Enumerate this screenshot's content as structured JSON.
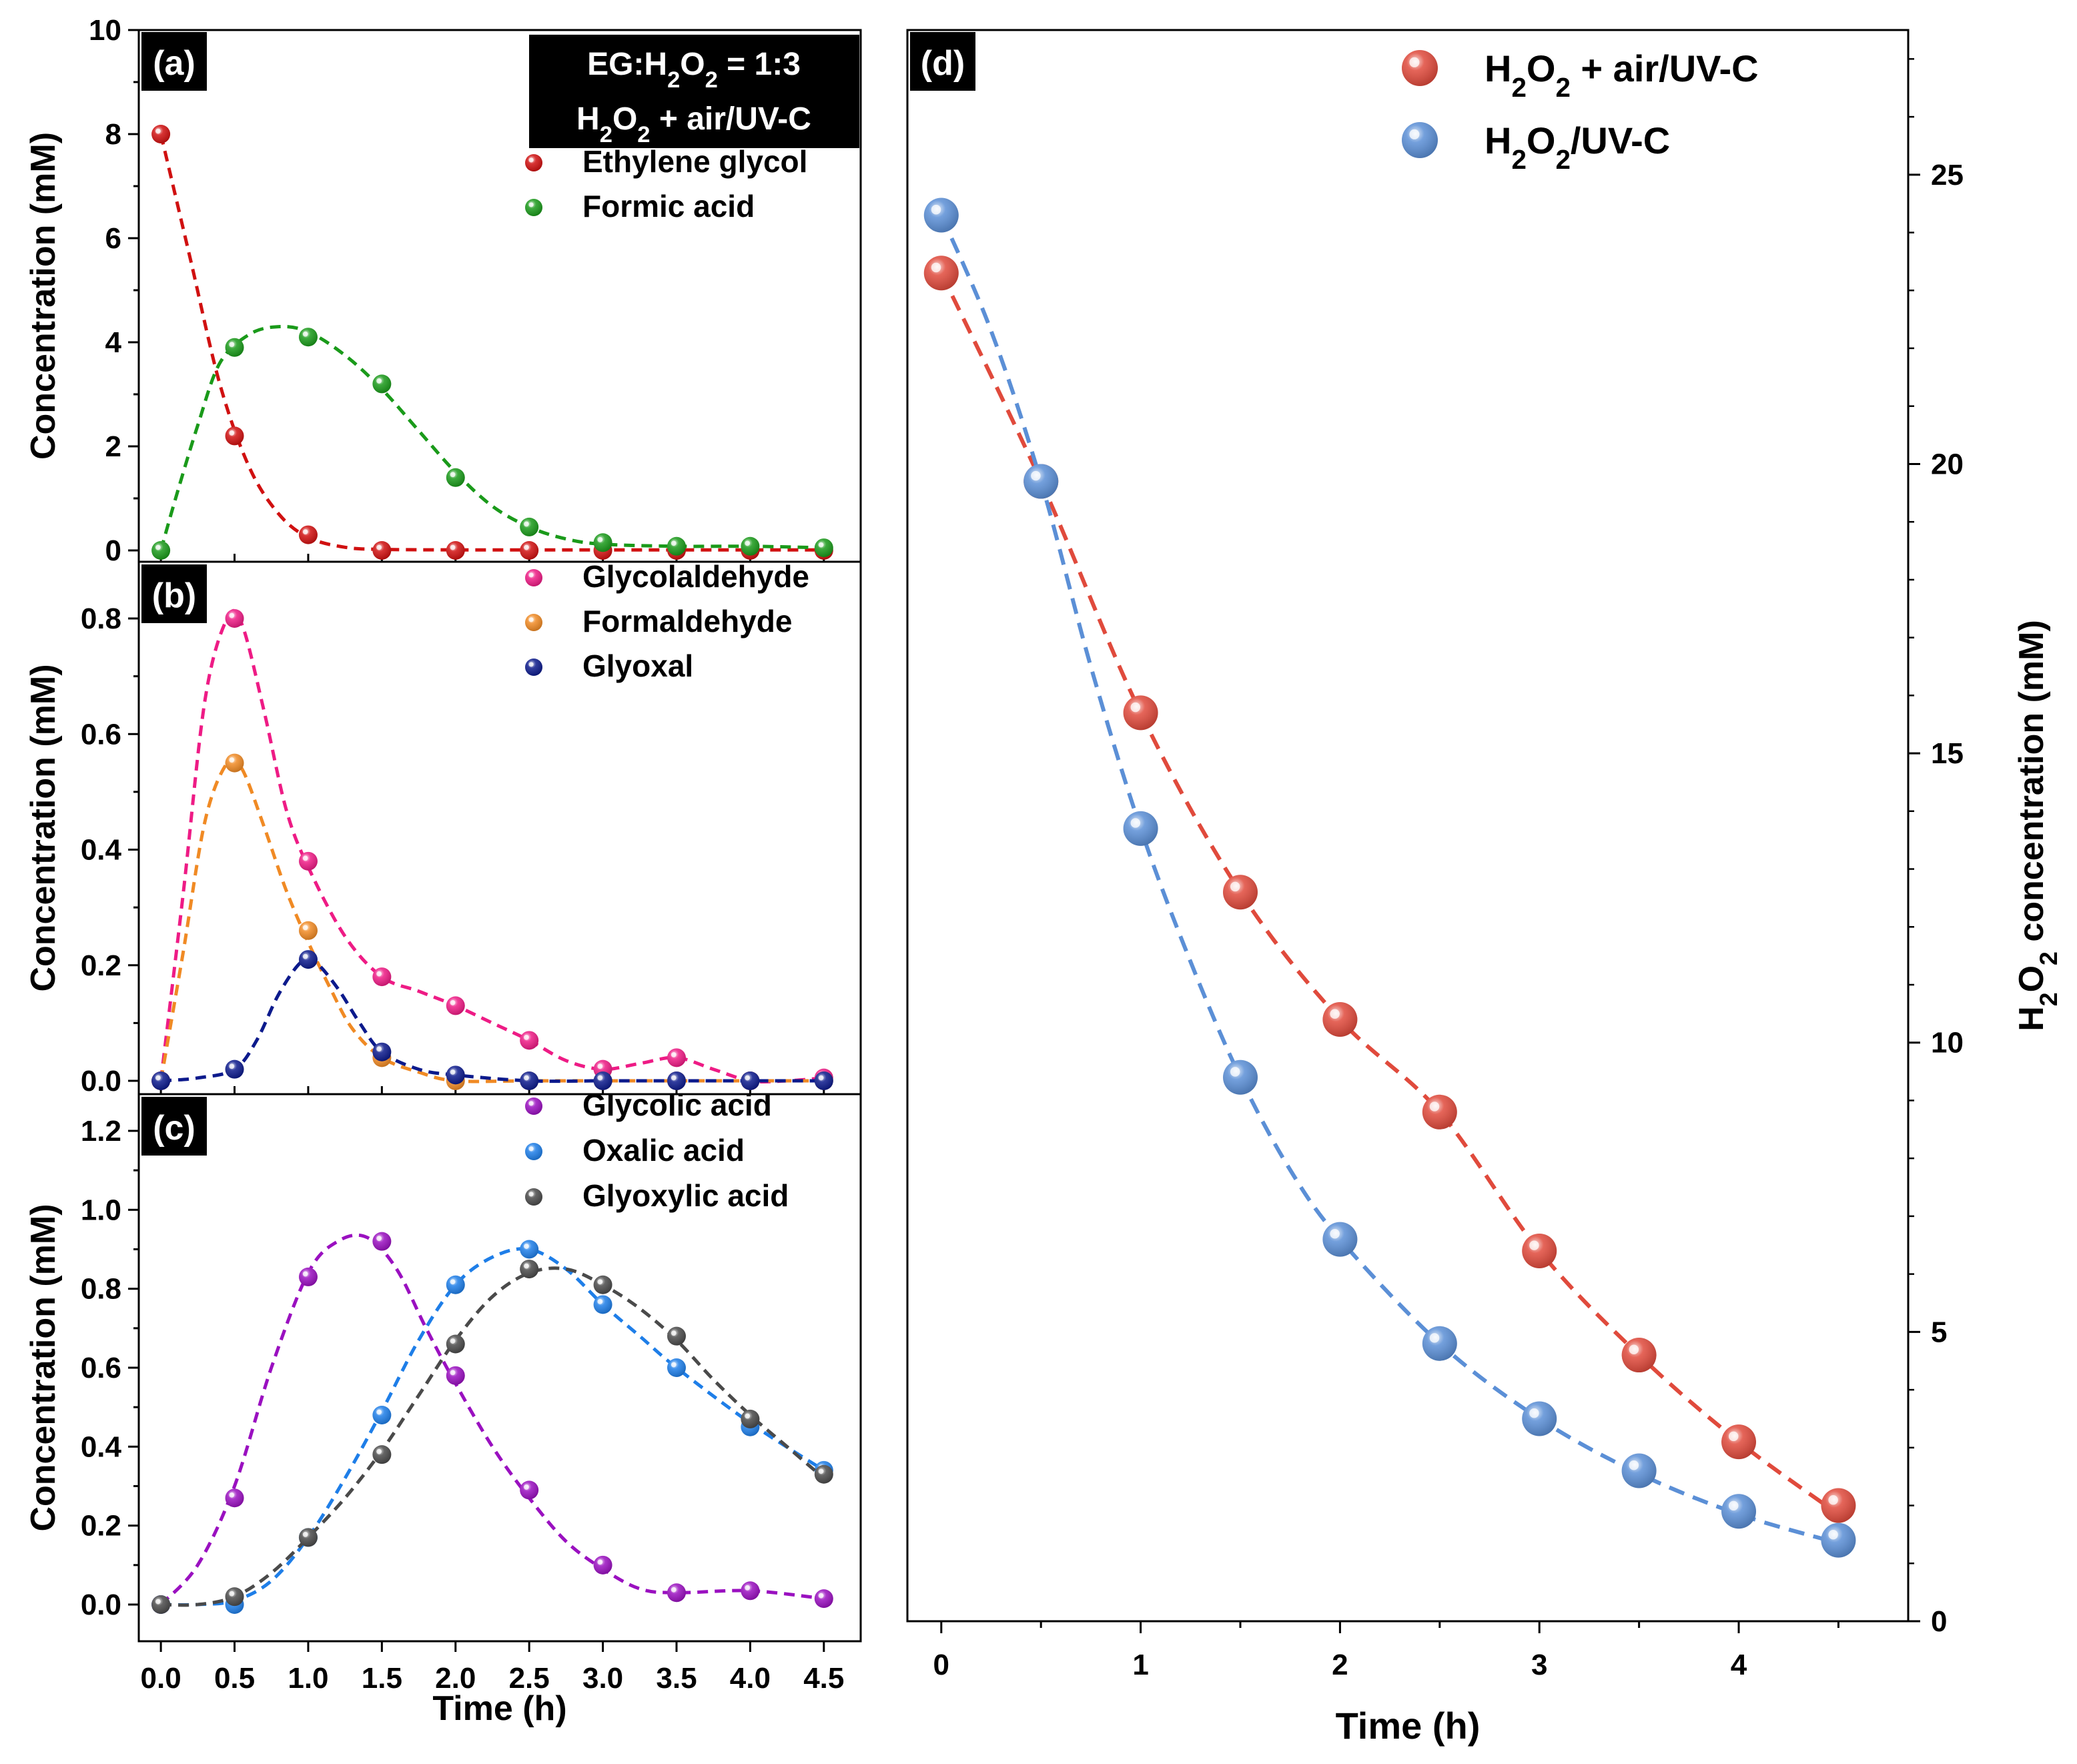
{
  "chart_data": [
    {
      "panel": "a",
      "type": "scatter",
      "label": "(a)",
      "info_box": [
        "EG:H2O2 = 1:3",
        "H2O2 + air/UV-C"
      ],
      "ylabel": "Concentration (mM)",
      "ylim": [
        0,
        10
      ],
      "yticks": [
        0,
        2,
        4,
        6,
        8,
        10
      ],
      "x": [
        0,
        0.5,
        1,
        1.5,
        2,
        2.5,
        3,
        3.5,
        4,
        4.5
      ],
      "series": [
        {
          "name": "Ethylene glycol",
          "color": "#d01010",
          "values": [
            8.0,
            2.2,
            0.3,
            0.0,
            0.0,
            0.0,
            0.0,
            0.0,
            0.0,
            0.0
          ],
          "curve_x": [
            0,
            0.2,
            0.4,
            0.6,
            0.8,
            1.0,
            1.25,
            1.5,
            2,
            2.5,
            3,
            3.5,
            4,
            4.5
          ],
          "curve_y": [
            8.0,
            5.6,
            3.2,
            1.6,
            0.7,
            0.25,
            0.06,
            0.02,
            0.01,
            0.01,
            0.01,
            0.01,
            0.01,
            0.01
          ]
        },
        {
          "name": "Formic acid",
          "color": "#1a9a1a",
          "values": [
            0.0,
            3.9,
            4.1,
            3.2,
            1.4,
            0.45,
            0.15,
            0.08,
            0.08,
            0.05
          ],
          "curve_x": [
            0,
            0.1,
            0.25,
            0.4,
            0.6,
            0.8,
            1.0,
            1.25,
            1.5,
            1.75,
            2,
            2.25,
            2.5,
            2.75,
            3,
            3.5,
            4,
            4.5
          ],
          "curve_y": [
            0.0,
            1.0,
            2.4,
            3.6,
            4.15,
            4.3,
            4.2,
            3.75,
            3.1,
            2.3,
            1.5,
            0.85,
            0.45,
            0.22,
            0.12,
            0.08,
            0.08,
            0.05
          ]
        }
      ]
    },
    {
      "panel": "b",
      "type": "scatter",
      "label": "(b)",
      "ylabel": "Concentration (mM)",
      "ylim": [
        0,
        0.9
      ],
      "yticks": [
        0.0,
        0.2,
        0.4,
        0.6,
        0.8
      ],
      "ytick_labels": [
        "0.0",
        "0.2",
        "0.4",
        "0.6",
        "0.8"
      ],
      "x": [
        0,
        0.5,
        1,
        1.5,
        2,
        2.5,
        3,
        3.5,
        4,
        4.5
      ],
      "series": [
        {
          "name": "Glycolaldehyde",
          "color": "#ee1b85",
          "values": [
            0.0,
            0.8,
            0.38,
            0.18,
            0.13,
            0.07,
            0.02,
            0.04,
            0.0,
            0.005
          ],
          "curve_x": [
            0,
            0.15,
            0.3,
            0.45,
            0.55,
            0.7,
            0.85,
            1.0,
            1.25,
            1.5,
            1.75,
            2,
            2.25,
            2.5,
            2.75,
            3,
            3.25,
            3.5,
            3.75,
            4,
            4.25,
            4.5
          ],
          "curve_y": [
            0.0,
            0.32,
            0.66,
            0.8,
            0.79,
            0.64,
            0.47,
            0.37,
            0.25,
            0.18,
            0.155,
            0.13,
            0.1,
            0.07,
            0.035,
            0.02,
            0.03,
            0.04,
            0.02,
            0.0,
            0.0,
            0.005
          ]
        },
        {
          "name": "Formaldehyde",
          "color": "#f08a24",
          "values": [
            0.0,
            0.55,
            0.26,
            0.04,
            0.0,
            0.0,
            0.0,
            0.0,
            0.0,
            0.0
          ],
          "curve_x": [
            0,
            0.15,
            0.3,
            0.45,
            0.55,
            0.7,
            0.85,
            1.0,
            1.15,
            1.3,
            1.5,
            1.75,
            2,
            2.5,
            3,
            3.5,
            4,
            4.5
          ],
          "curve_y": [
            0.0,
            0.22,
            0.45,
            0.55,
            0.54,
            0.44,
            0.33,
            0.24,
            0.16,
            0.09,
            0.04,
            0.015,
            0.0,
            0.0,
            0.0,
            0.0,
            0.0,
            0.0
          ]
        },
        {
          "name": "Glyoxal",
          "color": "#0c1a8c",
          "values": [
            0.0,
            0.02,
            0.21,
            0.05,
            0.01,
            0.0,
            0.0,
            0.0,
            0.0,
            0.0
          ],
          "curve_x": [
            0,
            0.25,
            0.5,
            0.65,
            0.8,
            0.95,
            1.05,
            1.2,
            1.35,
            1.5,
            1.75,
            2,
            2.5,
            3,
            3.5,
            4,
            4.5
          ],
          "curve_y": [
            0.0,
            0.005,
            0.02,
            0.07,
            0.15,
            0.205,
            0.205,
            0.16,
            0.1,
            0.05,
            0.02,
            0.01,
            0.0,
            0.0,
            0.0,
            0.0,
            0.0
          ]
        }
      ]
    },
    {
      "panel": "c",
      "type": "scatter",
      "label": "(c)",
      "ylabel": "Concentration (mM)",
      "xlabel": "Time (h)",
      "ylim": [
        -0.05,
        1.35
      ],
      "yticks": [
        0.0,
        0.2,
        0.4,
        0.6,
        0.8,
        1.0,
        1.2
      ],
      "ytick_labels": [
        "0.0",
        "0.2",
        "0.4",
        "0.6",
        "0.8",
        "1.0",
        "1.2"
      ],
      "xlim": [
        -0.15,
        4.75
      ],
      "xticks": [
        0,
        0.5,
        1,
        1.5,
        2,
        2.5,
        3,
        3.5,
        4,
        4.5
      ],
      "xtick_labels": [
        "0.0",
        "0.5",
        "1.0",
        "1.5",
        "2.0",
        "2.5",
        "3.0",
        "3.5",
        "4.0",
        "4.5"
      ],
      "x": [
        0,
        0.5,
        1,
        1.5,
        2,
        2.5,
        3,
        3.5,
        4,
        4.5
      ],
      "series": [
        {
          "name": "Glycolic acid",
          "color": "#9a10c0",
          "values": [
            0.0,
            0.27,
            0.83,
            0.92,
            0.58,
            0.29,
            0.1,
            0.03,
            0.035,
            0.015
          ],
          "curve_x": [
            0,
            0.25,
            0.5,
            0.75,
            1.0,
            1.2,
            1.4,
            1.6,
            1.8,
            2,
            2.25,
            2.5,
            2.75,
            3,
            3.25,
            3.5,
            4,
            4.5
          ],
          "curve_y": [
            0.0,
            0.1,
            0.3,
            0.6,
            0.84,
            0.92,
            0.93,
            0.85,
            0.7,
            0.56,
            0.4,
            0.27,
            0.16,
            0.09,
            0.04,
            0.03,
            0.035,
            0.015
          ]
        },
        {
          "name": "Oxalic acid",
          "color": "#1e7ee8",
          "values": [
            0.0,
            0.0,
            0.17,
            0.48,
            0.81,
            0.9,
            0.76,
            0.6,
            0.45,
            0.34
          ],
          "curve_x": [
            0,
            0.25,
            0.5,
            0.75,
            1.0,
            1.25,
            1.5,
            1.75,
            2,
            2.25,
            2.5,
            2.75,
            3,
            3.25,
            3.5,
            4,
            4.5
          ],
          "curve_y": [
            0.0,
            0.0,
            0.01,
            0.06,
            0.17,
            0.32,
            0.49,
            0.67,
            0.81,
            0.88,
            0.9,
            0.85,
            0.76,
            0.68,
            0.6,
            0.46,
            0.34
          ]
        },
        {
          "name": "Glyoxylic acid",
          "color": "#4a4a4a",
          "values": [
            0.0,
            0.02,
            0.17,
            0.38,
            0.66,
            0.85,
            0.81,
            0.68,
            0.47,
            0.33
          ],
          "curve_x": [
            0,
            0.25,
            0.5,
            0.75,
            1.0,
            1.25,
            1.5,
            1.75,
            2,
            2.25,
            2.5,
            2.75,
            3,
            3.25,
            3.5,
            3.75,
            4,
            4.25,
            4.5
          ],
          "curve_y": [
            0.0,
            0.0,
            0.02,
            0.08,
            0.17,
            0.27,
            0.39,
            0.53,
            0.67,
            0.78,
            0.84,
            0.85,
            0.81,
            0.75,
            0.67,
            0.57,
            0.48,
            0.4,
            0.32
          ]
        }
      ]
    },
    {
      "panel": "d",
      "type": "scatter",
      "label": "(d)",
      "xlabel": "Time (h)",
      "ylabel": "H2O2 concentration (mM)",
      "ylim": [
        0,
        27.5
      ],
      "yticks": [
        0,
        5,
        10,
        15,
        20,
        25
      ],
      "xlim": [
        -0.17,
        4.85
      ],
      "xticks": [
        0,
        1,
        2,
        3,
        4
      ],
      "x": [
        0,
        0.5,
        1,
        1.5,
        2,
        2.5,
        3,
        3.5,
        4,
        4.5
      ],
      "series": [
        {
          "name": "H2O2 + air/UV-C",
          "color": "#e04a3c",
          "values": [
            23.3,
            19.7,
            15.7,
            12.6,
            10.4,
            8.8,
            6.4,
            4.6,
            3.1,
            2.0
          ],
          "curve_x": [
            0,
            0.5,
            1.0,
            1.5,
            2.0,
            2.5,
            3.0,
            3.5,
            4.0,
            4.5
          ],
          "curve_y": [
            23.3,
            19.7,
            15.7,
            12.6,
            10.4,
            8.8,
            6.4,
            4.6,
            3.1,
            1.85
          ]
        },
        {
          "name": "H2O2/UV-C",
          "color": "#5b8fd6",
          "values": [
            24.3,
            19.7,
            13.7,
            9.4,
            6.6,
            4.8,
            3.5,
            2.6,
            1.9,
            1.4
          ],
          "curve_x": [
            0,
            0.25,
            0.5,
            0.75,
            1.0,
            1.25,
            1.5,
            1.75,
            2.0,
            2.5,
            3.0,
            3.5,
            4.0,
            4.5
          ],
          "curve_y": [
            24.3,
            22.3,
            19.7,
            16.5,
            13.7,
            11.4,
            9.4,
            7.8,
            6.6,
            4.8,
            3.5,
            2.55,
            1.85,
            1.35
          ]
        }
      ]
    }
  ]
}
